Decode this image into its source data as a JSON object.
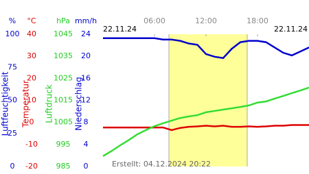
{
  "chart_data": {
    "type": "line",
    "date_left": "22.11.24",
    "date_right": "22.11.24",
    "footer": "Erstellt: 04.12.2024 20:22",
    "xlim": [
      0,
      24
    ],
    "xticks": [
      {
        "value": 6,
        "label": "06:00"
      },
      {
        "value": 12,
        "label": "12:00"
      },
      {
        "value": 18,
        "label": "18:00"
      }
    ],
    "axes": [
      {
        "unit": "%",
        "title": "Luftfeuchtigkeit",
        "color": "#0000cc",
        "lim": [
          0,
          100
        ],
        "ticks": [
          0,
          25,
          50,
          75,
          100
        ]
      },
      {
        "unit": "°C",
        "title": "Temperatur",
        "color": "#dd0000",
        "lim": [
          -20,
          40
        ],
        "ticks": [
          -20,
          -10,
          0,
          10,
          20,
          30,
          40
        ]
      },
      {
        "unit": "hPa",
        "title": "Luftdruck",
        "color": "#22cc22",
        "lim": [
          985,
          1045
        ],
        "ticks": [
          985,
          995,
          1005,
          1015,
          1025,
          1035,
          1045
        ]
      },
      {
        "unit": "mm/h",
        "title": "Niederschlag",
        "color": "#0000cc",
        "lim": [
          0,
          24
        ],
        "ticks": [
          0,
          4,
          8,
          12,
          16,
          20,
          24
        ]
      }
    ],
    "x": [
      0,
      1,
      2,
      3,
      4,
      5,
      6,
      7,
      8,
      9,
      10,
      11,
      12,
      13,
      14,
      15,
      16,
      17,
      18,
      19,
      20,
      21,
      22,
      23,
      24
    ],
    "series": [
      {
        "axis": 0,
        "color": "#0000cc",
        "values": [
          97,
          97,
          97,
          97,
          97,
          97,
          97,
          96,
          96,
          95,
          93,
          92,
          85,
          83,
          82,
          89,
          94,
          95,
          95,
          94,
          90,
          86,
          84,
          87,
          90
        ]
      },
      {
        "axis": 1,
        "color": "#dd0000",
        "values": [
          -2.3,
          -2.3,
          -2.3,
          -2.3,
          -2.3,
          -2.3,
          -2.3,
          -2.3,
          -3.5,
          -2.5,
          -2,
          -1.8,
          -1.5,
          -1.8,
          -1.5,
          -2,
          -2,
          -1.8,
          -2,
          -1.8,
          -1.5,
          -1.5,
          -1.2,
          -1.2,
          -1.2
        ]
      },
      {
        "axis": 2,
        "color": "#33dd33",
        "values": [
          989.7,
          992,
          994.6,
          997,
          999.6,
          1001.5,
          1003.3,
          1004.6,
          1005.8,
          1007,
          1007.7,
          1008.3,
          1009.6,
          1010.2,
          1010.8,
          1011.4,
          1012,
          1012.7,
          1014,
          1014.5,
          1015.8,
          1017,
          1018.3,
          1019.5,
          1020.8
        ]
      }
    ]
  }
}
